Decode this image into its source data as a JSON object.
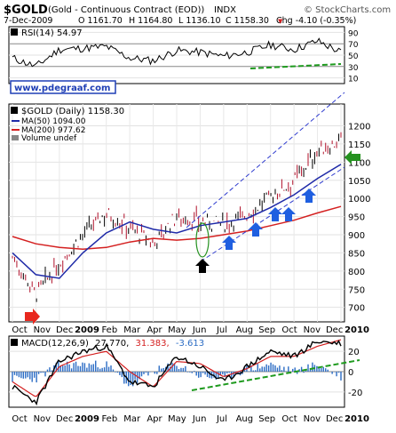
{
  "header": {
    "symbol": "$GOLD",
    "description": "(Gold - Continuous Contract (EOD))",
    "exchange": "INDX",
    "date": "7-Dec-2009",
    "open": "O 1161.70",
    "high": "H 1164.80",
    "low": "L 1136.10",
    "close": "C 1158.30",
    "change": "Chg -4.10 (-0.35%)",
    "change_direction_glyph": "▼",
    "watermark": "© StockCharts.com"
  },
  "rsi_panel": {
    "label": "RSI(14) 54.97",
    "ticks": [
      "90",
      "70",
      "50",
      "30",
      "10"
    ],
    "tick_values": [
      90,
      70,
      50,
      30,
      10
    ],
    "overbought": 70,
    "oversold": 30,
    "badge": "www.pdegraaf.com"
  },
  "price_panel": {
    "title": "$GOLD (Daily) 1158.30",
    "legend": [
      {
        "label": "MA(50) 1094.00",
        "color": "#1f2aa8"
      },
      {
        "label": "MA(200) 977.62",
        "color": "#d42020"
      },
      {
        "label": "Volume undef",
        "color": "#888888"
      }
    ],
    "y_ticks": [
      "1200",
      "1150",
      "1100",
      "1050",
      "1000",
      "950",
      "900",
      "850",
      "800",
      "750",
      "700"
    ],
    "y_values": [
      1200,
      1150,
      1100,
      1050,
      1000,
      950,
      900,
      850,
      800,
      750,
      700
    ]
  },
  "x_axis": {
    "labels": [
      "Oct",
      "Nov",
      "Dec",
      "2009",
      "Feb",
      "Mar",
      "Apr",
      "May",
      "Jun",
      "Jul",
      "Aug",
      "Sep",
      "Oct",
      "Nov",
      "Dec",
      "2010"
    ],
    "bold": [
      "2009",
      "2010"
    ]
  },
  "macd_panel": {
    "label_prefix": "MACD(12,26,9)",
    "macd": "27.770,",
    "signal": "31.383,",
    "histogram": "-3.613",
    "ticks": [
      "20",
      "0",
      "-20"
    ],
    "tick_values": [
      20,
      0,
      -20
    ]
  },
  "colors": {
    "macd_line": "#000000",
    "signal_line": "#d42020",
    "histogram": "#2b6cc4",
    "trend_dash": "#2f3ccf",
    "green_dash": "#1e9a1e",
    "red_arrow": "#e8281e",
    "green_arrow": "#24911f",
    "blue_arrow": "#1f5fe0",
    "black_arrow": "#000000",
    "badge_blue": "#1f3fb5"
  },
  "annotations": {
    "arrows": [
      "red-arrow-nov",
      "black-arrow-jun",
      "blue-arrow-jul",
      "blue-arrow-aug",
      "blue-arrow-sep-1",
      "blue-arrow-sep-2",
      "blue-arrow-oct",
      "blue-arrow-nov",
      "green-arrow-1100"
    ],
    "ellipse": "green-ellipse-jun"
  },
  "chart_data": {
    "type": "line",
    "title": "$GOLD (Daily) 1158.30",
    "x": [
      "Oct 2008",
      "Nov 2008",
      "Dec 2008",
      "Jan 2009",
      "Feb 2009",
      "Mar 2009",
      "Apr 2009",
      "May 2009",
      "Jun 2009",
      "Jul 2009",
      "Aug 2009",
      "Sep 2009",
      "Oct 2009",
      "Nov 2009",
      "Dec 2009"
    ],
    "series": [
      {
        "name": "$GOLD (Daily)",
        "values": [
          840,
          735,
          820,
          900,
          960,
          920,
          875,
          950,
          935,
          930,
          955,
          1005,
          1050,
          1130,
          1158
        ]
      },
      {
        "name": "MA(50)",
        "values": [
          850,
          790,
          780,
          850,
          905,
          935,
          915,
          905,
          925,
          935,
          945,
          975,
          1010,
          1055,
          1094
        ]
      },
      {
        "name": "MA(200)",
        "values": [
          895,
          875,
          865,
          860,
          865,
          880,
          890,
          885,
          890,
          900,
          910,
          925,
          940,
          960,
          978
        ]
      }
    ],
    "ylim": [
      660,
      1260
    ],
    "ylabel": "",
    "grid": true,
    "macd": {
      "name": "MACD(12,26,9)",
      "values": [
        -15,
        -30,
        10,
        20,
        25,
        -10,
        -15,
        15,
        5,
        -10,
        5,
        20,
        15,
        30,
        27.77
      ]
    },
    "signal": {
      "name": "signal",
      "values": [
        -10,
        -25,
        5,
        15,
        20,
        0,
        -15,
        10,
        8,
        -5,
        3,
        15,
        15,
        25,
        31.383
      ]
    },
    "rsi": {
      "name": "RSI(14)",
      "values": [
        45,
        30,
        60,
        62,
        65,
        45,
        40,
        58,
        55,
        48,
        55,
        68,
        60,
        75,
        54.97
      ]
    }
  }
}
